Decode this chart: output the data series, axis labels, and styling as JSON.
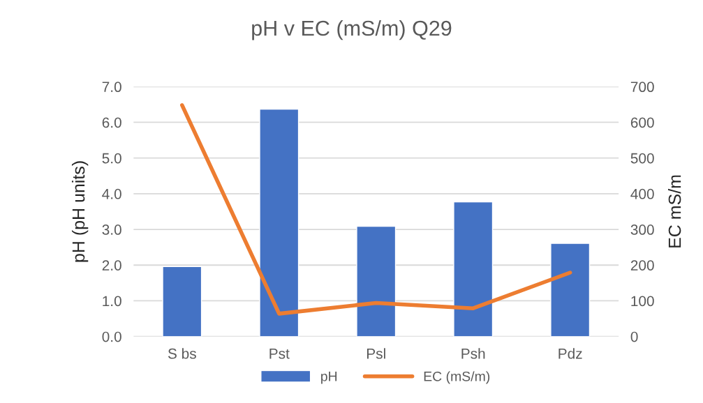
{
  "chart_data": {
    "type": "bar",
    "title": "pH v EC (mS/m) Q29",
    "ylabel": "pH (pH units)",
    "y2label": "EC mS/m",
    "categories": [
      "S bs",
      "Pst",
      "Psl",
      "Psh",
      "Pdz"
    ],
    "series": [
      {
        "name": "pH",
        "color": "#4472c4",
        "values": [
          1.96,
          6.37,
          3.09,
          3.77,
          2.61
        ]
      },
      {
        "name": "EC (mS/m)",
        "type": "line",
        "axis": "y2",
        "color": "#ed7d31",
        "values": [
          648,
          64,
          94,
          79,
          179
        ]
      }
    ],
    "ylim": [
      0,
      7
    ],
    "yticks": [
      {
        "value": 0,
        "label": "0.0"
      },
      {
        "value": 1,
        "label": "1.0"
      },
      {
        "value": 2,
        "label": "2.0"
      },
      {
        "value": 3,
        "label": "3.0"
      },
      {
        "value": 4,
        "label": "4.0"
      },
      {
        "value": 5,
        "label": "5.0"
      },
      {
        "value": 6,
        "label": "6.0"
      },
      {
        "value": 7,
        "label": "7.0"
      }
    ],
    "y2lim": [
      0,
      700
    ],
    "y2ticks": [
      0,
      100,
      200,
      300,
      400,
      500,
      600,
      700
    ],
    "grid": "y",
    "legend": "bottom",
    "marker": "none",
    "line_style": "solid"
  }
}
